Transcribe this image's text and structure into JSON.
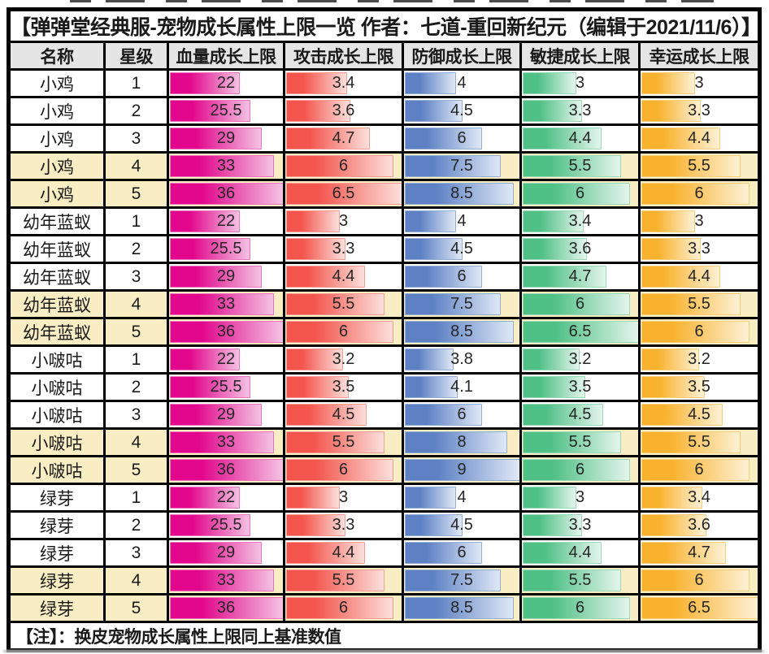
{
  "chart_data": {
    "type": "table",
    "title": "【弹弹堂经典服-宠物成长属性上限一览 作者：七道-重回新纪元（编辑于2021/11/6）】",
    "note": "【注】：换皮宠物成长属性上限同上基准数值",
    "columns": [
      "名称",
      "星级",
      "血量成长上限",
      "攻击成长上限",
      "防御成长上限",
      "敏捷成长上限",
      "幸运成长上限"
    ],
    "bar_axis_max": {
      "hp": 36,
      "atk": 6.5,
      "def": 9,
      "agi": 6.5,
      "luck": 6.5
    },
    "highlight_star_min": 4,
    "rows": [
      {
        "name": "小鸡",
        "star": 1,
        "hp": 22,
        "atk": 3.4,
        "def": 4,
        "agi": 3,
        "luck": 3
      },
      {
        "name": "小鸡",
        "star": 2,
        "hp": 25.5,
        "atk": 3.6,
        "def": 4.5,
        "agi": 3.3,
        "luck": 3.3
      },
      {
        "name": "小鸡",
        "star": 3,
        "hp": 29,
        "atk": 4.7,
        "def": 6,
        "agi": 4.4,
        "luck": 4.4
      },
      {
        "name": "小鸡",
        "star": 4,
        "hp": 33,
        "atk": 6,
        "def": 7.5,
        "agi": 5.5,
        "luck": 5.5
      },
      {
        "name": "小鸡",
        "star": 5,
        "hp": 36,
        "atk": 6.5,
        "def": 8.5,
        "agi": 6,
        "luck": 6
      },
      {
        "name": "幼年蓝蚁",
        "star": 1,
        "hp": 22,
        "atk": 3,
        "def": 4,
        "agi": 3.4,
        "luck": 3
      },
      {
        "name": "幼年蓝蚁",
        "star": 2,
        "hp": 25.5,
        "atk": 3.3,
        "def": 4.5,
        "agi": 3.6,
        "luck": 3.3
      },
      {
        "name": "幼年蓝蚁",
        "star": 3,
        "hp": 29,
        "atk": 4.4,
        "def": 6,
        "agi": 4.7,
        "luck": 4.4
      },
      {
        "name": "幼年蓝蚁",
        "star": 4,
        "hp": 33,
        "atk": 5.5,
        "def": 7.5,
        "agi": 6,
        "luck": 5.5
      },
      {
        "name": "幼年蓝蚁",
        "star": 5,
        "hp": 36,
        "atk": 6,
        "def": 8.5,
        "agi": 6.5,
        "luck": 6
      },
      {
        "name": "小啵咕",
        "star": 1,
        "hp": 22,
        "atk": 3.2,
        "def": 3.8,
        "agi": 3.2,
        "luck": 3.2
      },
      {
        "name": "小啵咕",
        "star": 2,
        "hp": 25.5,
        "atk": 3.5,
        "def": 4.1,
        "agi": 3.5,
        "luck": 3.5
      },
      {
        "name": "小啵咕",
        "star": 3,
        "hp": 29,
        "atk": 4.5,
        "def": 6,
        "agi": 4.5,
        "luck": 4.5
      },
      {
        "name": "小啵咕",
        "star": 4,
        "hp": 33,
        "atk": 5.5,
        "def": 8,
        "agi": 5.5,
        "luck": 5.5
      },
      {
        "name": "小啵咕",
        "star": 5,
        "hp": 36,
        "atk": 6,
        "def": 9,
        "agi": 6,
        "luck": 6
      },
      {
        "name": "绿芽",
        "star": 1,
        "hp": 22,
        "atk": 3,
        "def": 4,
        "agi": 3,
        "luck": 3.4
      },
      {
        "name": "绿芽",
        "star": 2,
        "hp": 25.5,
        "atk": 3.3,
        "def": 4.5,
        "agi": 3.3,
        "luck": 3.6
      },
      {
        "name": "绿芽",
        "star": 3,
        "hp": 29,
        "atk": 4.4,
        "def": 6,
        "agi": 4.4,
        "luck": 4.7
      },
      {
        "name": "绿芽",
        "star": 4,
        "hp": 33,
        "atk": 5.5,
        "def": 7.5,
        "agi": 5.5,
        "luck": 6
      },
      {
        "name": "绿芽",
        "star": 5,
        "hp": 36,
        "atk": 6,
        "def": 8.5,
        "agi": 6,
        "luck": 6.5
      }
    ]
  },
  "colors": {
    "hp": {
      "base": "#e2078c",
      "light": "#f4c2e3",
      "border": "#ea74ba"
    },
    "atk": {
      "base": "#f4564e",
      "light": "#fcdfdb",
      "border": "#f79c95"
    },
    "def": {
      "base": "#5d81c4",
      "light": "#dfe8f6",
      "border": "#93accf"
    },
    "agi": {
      "base": "#4fc086",
      "light": "#e4f5ec",
      "border": "#9ad8b8"
    },
    "luck": {
      "base": "#f9b22d",
      "light": "#fdf1d5",
      "border": "#f7cd79"
    },
    "highlight_row": "#f8edc3",
    "header_bg": "#e5e5e5",
    "grid_border": "#000000"
  }
}
